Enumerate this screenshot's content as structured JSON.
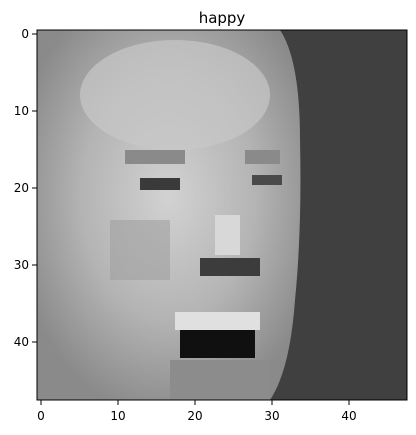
{
  "figure": {
    "title": "happy",
    "colormap": "gray",
    "grid_size": [
      48,
      48
    ]
  },
  "axes": {
    "x_ticks": [
      "0",
      "10",
      "20",
      "30",
      "40"
    ],
    "y_ticks": [
      "0",
      "10",
      "20",
      "30",
      "40"
    ],
    "x_tick_values": [
      0,
      10,
      20,
      30,
      40
    ],
    "y_tick_values": [
      0,
      10,
      20,
      30,
      40
    ],
    "xlim": [
      -0.5,
      47.5
    ],
    "ylim": [
      47.5,
      -0.5
    ]
  }
}
